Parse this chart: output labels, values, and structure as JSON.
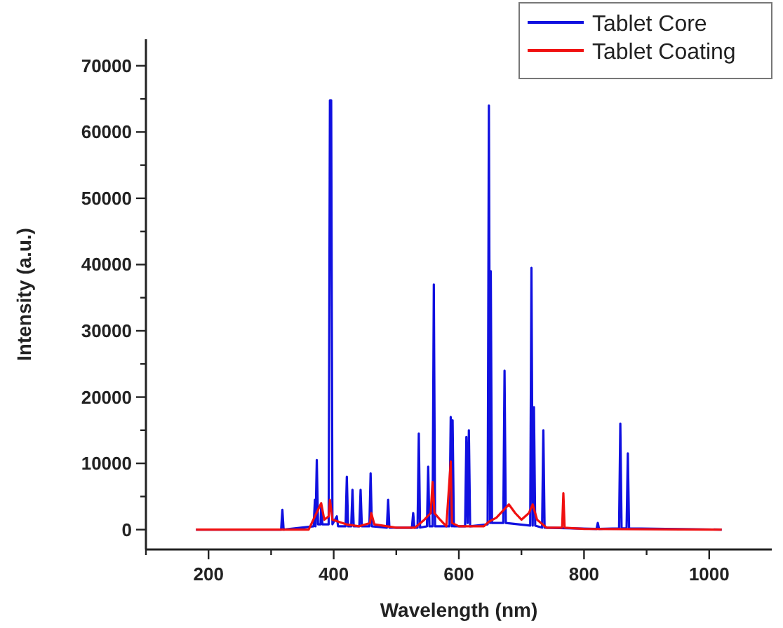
{
  "chart_data": {
    "type": "line",
    "xlabel": "Wavelength (nm)",
    "ylabel": "Intensity (a.u.)",
    "xlim": [
      100,
      1100
    ],
    "ylim": [
      -3000,
      74000
    ],
    "xticks": [
      {
        "value": 100,
        "label": null
      },
      200,
      {
        "value": 300,
        "label": null
      },
      400,
      {
        "value": 500,
        "label": null
      },
      600,
      {
        "value": 700,
        "label": null
      },
      800,
      {
        "value": 900,
        "label": null
      },
      1000
    ],
    "yticks": [
      0,
      {
        "value": 5000,
        "label": null
      },
      10000,
      {
        "value": 15000,
        "label": null
      },
      20000,
      {
        "value": 25000,
        "label": null
      },
      30000,
      {
        "value": 35000,
        "label": null
      },
      40000,
      {
        "value": 45000,
        "label": null
      },
      50000,
      {
        "value": 55000,
        "label": null
      },
      60000,
      {
        "value": 65000,
        "label": null
      },
      70000
    ],
    "grid": false,
    "legend": "top right",
    "line_style": "solid",
    "series": [
      {
        "name": "Tablet Core",
        "color": "#1010e0",
        "x": [
          180,
          280,
          316,
          318,
          320,
          368,
          370,
          371,
          373,
          375,
          379,
          380,
          382,
          392,
          394,
          396,
          398,
          405,
          407,
          419,
          421,
          423,
          428,
          430,
          432,
          441,
          443,
          445,
          457,
          459,
          461,
          485,
          487,
          489,
          525,
          527,
          529,
          534,
          536,
          538,
          549,
          551,
          553,
          558,
          560,
          562,
          585,
          587,
          589,
          590,
          592,
          610,
          612,
          614,
          616,
          618,
          646,
          648,
          650,
          651,
          653,
          671,
          673,
          675,
          714,
          716,
          718,
          720,
          722,
          733,
          735,
          737,
          820,
          822,
          824,
          856,
          858,
          860,
          868,
          870,
          872,
          1020
        ],
        "values": [
          0,
          0,
          0,
          3000,
          0,
          500,
          4500,
          500,
          10500,
          800,
          800,
          3500,
          800,
          800,
          64800,
          64800,
          800,
          2000,
          500,
          500,
          8000,
          500,
          500,
          6000,
          500,
          500,
          6000,
          500,
          500,
          8500,
          500,
          300,
          4500,
          300,
          300,
          2500,
          300,
          300,
          14500,
          300,
          500,
          9500,
          500,
          500,
          37000,
          500,
          500,
          17000,
          500,
          16500,
          500,
          500,
          14000,
          1000,
          15000,
          500,
          800,
          64000,
          1000,
          39000,
          1000,
          1000,
          24000,
          1000,
          600,
          39500,
          600,
          18500,
          600,
          300,
          15000,
          300,
          100,
          1000,
          100,
          200,
          16000,
          200,
          200,
          11500,
          200,
          0
        ]
      },
      {
        "name": "Tablet Coating",
        "color": "#f01010",
        "x": [
          180,
          360,
          370,
          375,
          380,
          385,
          392,
          394,
          398,
          420,
          440,
          458,
          460,
          465,
          500,
          530,
          545,
          555,
          558,
          561,
          570,
          580,
          587,
          589,
          600,
          640,
          648,
          660,
          670,
          680,
          690,
          700,
          712,
          718,
          725,
          740,
          765,
          767,
          769,
          800,
          1020
        ],
        "values": [
          0,
          0,
          2000,
          3000,
          4000,
          1500,
          2000,
          4500,
          1500,
          800,
          500,
          1000,
          2500,
          800,
          300,
          300,
          1500,
          2500,
          7200,
          2500,
          1500,
          500,
          10300,
          1000,
          500,
          500,
          1200,
          1800,
          2800,
          3800,
          2500,
          1500,
          2500,
          3800,
          1500,
          300,
          300,
          5500,
          300,
          100,
          0
        ]
      }
    ]
  }
}
